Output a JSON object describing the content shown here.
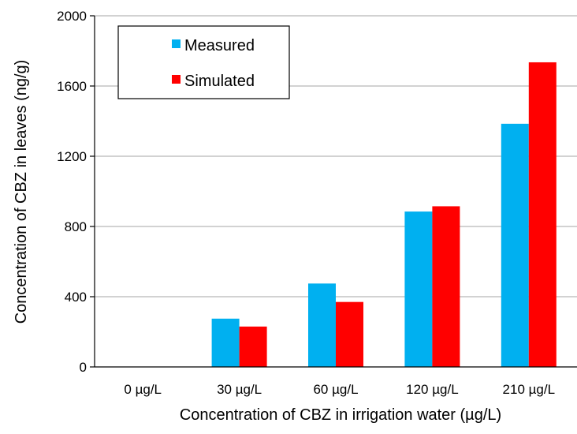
{
  "chart_data": {
    "type": "bar",
    "categories": [
      "0 µg/L",
      "30 µg/L",
      "60 µg/L",
      "120 µg/L",
      "210 µg/L"
    ],
    "series": [
      {
        "name": "Measured",
        "color": "#00B0F0",
        "values": [
          0,
          275,
          475,
          885,
          1385
        ]
      },
      {
        "name": "Simulated",
        "color": "#FF0000",
        "values": [
          0,
          230,
          370,
          915,
          1735
        ]
      }
    ],
    "title": "",
    "xlabel": "Concentration of CBZ in irrigation water (µg/L)",
    "ylabel": "Concentration of CBZ in leaves (ng/g)",
    "ylim": [
      0,
      2000
    ],
    "yticks": [
      0,
      400,
      800,
      1200,
      1600,
      2000
    ],
    "grid": true,
    "legend_position": "top-left"
  }
}
